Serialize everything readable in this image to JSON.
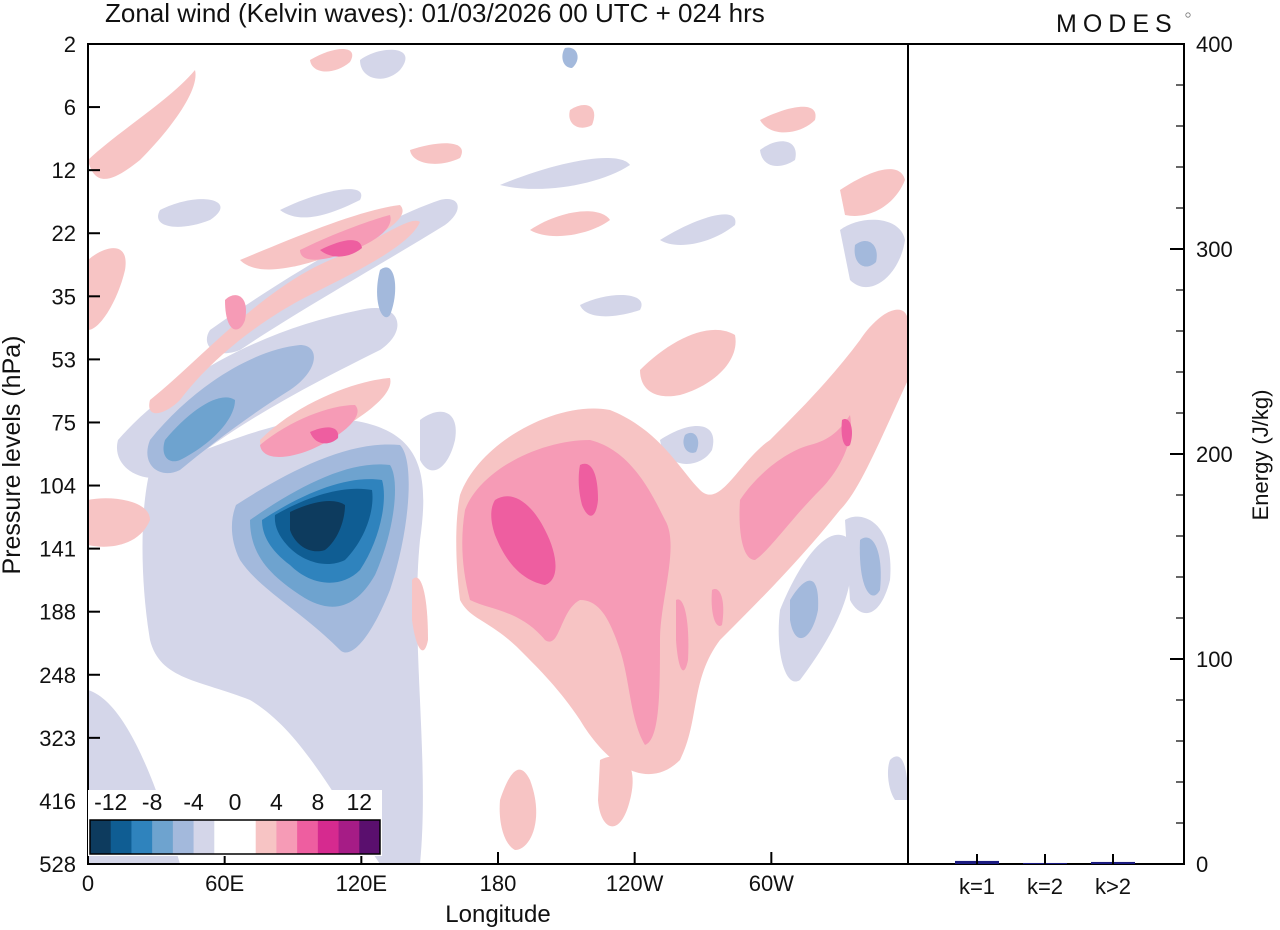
{
  "chart_data": {
    "type": "heatmap",
    "title": "Zonal wind (Kelvin waves):  01/03/2026  00 UTC  + 024 hrs",
    "brand": "MODES",
    "xlabel": "Longitude",
    "ylabel": "Pressure levels (hPa)",
    "x_ticks": [
      "0",
      "60E",
      "120E",
      "180",
      "120W",
      "60W"
    ],
    "x_tick_degrees": [
      0,
      60,
      120,
      180,
      240,
      300
    ],
    "x_range_degrees": [
      0,
      360
    ],
    "pressure_levels": [
      "2",
      "6",
      "12",
      "22",
      "35",
      "53",
      "75",
      "104",
      "141",
      "188",
      "248",
      "323",
      "416",
      "528"
    ],
    "colorbar": {
      "labels": [
        "-12",
        "-8",
        "-4",
        "0",
        "4",
        "8",
        "12"
      ],
      "colors": [
        "#0d3b5e",
        "#0f5d93",
        "#2f83bd",
        "#6ea3cf",
        "#a3b9dc",
        "#d4d6e9",
        "#ffffff",
        "#ffffff",
        "#f7c4c4",
        "#f69bb6",
        "#ee5ea0",
        "#d62a8f",
        "#a61c86",
        "#5a0f6e"
      ]
    },
    "energy_panel": {
      "ylabel": "Energy (J/kg)",
      "ylim": [
        0,
        400
      ],
      "y_ticks": [
        0,
        100,
        200,
        300,
        400
      ],
      "categories": [
        "k=1",
        "k=2",
        "k>2"
      ],
      "values": [
        1.5,
        0.5,
        1.0
      ],
      "bar_color": "#1a1a80"
    },
    "features": [
      {
        "name": "easterly-core-upper-trop",
        "sign": -1,
        "lon_center": 100,
        "level_center": "141",
        "peak": -14
      },
      {
        "name": "westerly-core-date-line",
        "sign": 1,
        "lon_center": 190,
        "level_center": "141",
        "peak": 9
      },
      {
        "name": "westerly-tilted-band-strat",
        "sign": 1,
        "lon_center": 95,
        "level_center": "75",
        "peak": 6
      }
    ]
  }
}
